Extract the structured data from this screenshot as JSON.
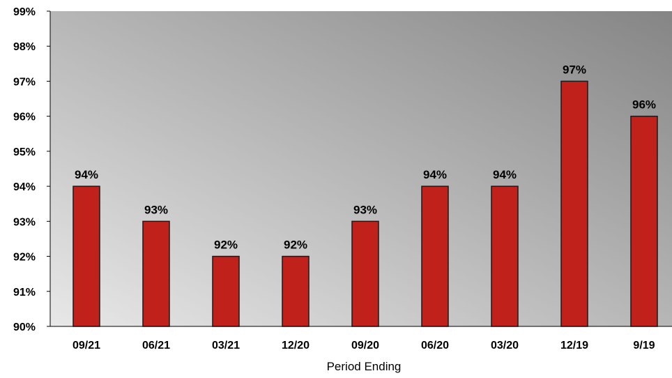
{
  "chart_data": {
    "type": "bar",
    "categories": [
      "09/21",
      "06/21",
      "03/21",
      "12/20",
      "09/20",
      "06/20",
      "03/20",
      "12/19",
      "9/19"
    ],
    "values": [
      94,
      93,
      92,
      92,
      93,
      94,
      94,
      97,
      96
    ],
    "data_labels": [
      "94%",
      "93%",
      "92%",
      "92%",
      "93%",
      "94%",
      "94%",
      "97%",
      "96%"
    ],
    "title": "",
    "xlabel": "Period Ending",
    "ylabel": "",
    "ylim": [
      90,
      99
    ],
    "y_ticks": [
      90,
      91,
      92,
      93,
      94,
      95,
      96,
      97,
      98,
      99
    ],
    "y_tick_labels": [
      "90%",
      "91%",
      "92%",
      "93%",
      "94%",
      "95%",
      "96%",
      "97%",
      "98%",
      "99%"
    ],
    "grid": false,
    "legend": "none",
    "colors": {
      "bar_fill": "#c0211a",
      "bar_stroke": "#1a1a1a",
      "plot_bg_dark": "#858585",
      "plot_bg_light": "#e8e8e8",
      "text": "#000000"
    }
  }
}
